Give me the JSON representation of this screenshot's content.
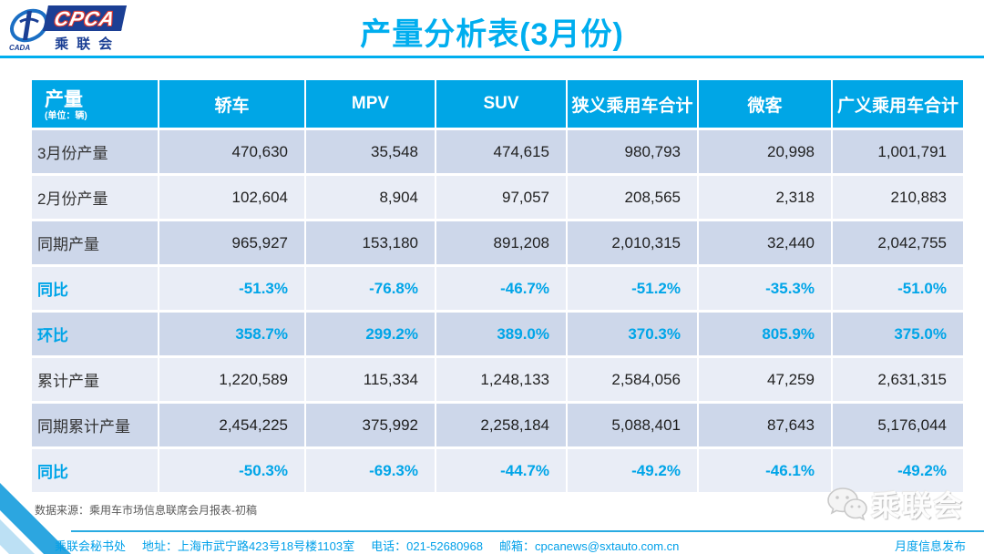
{
  "logo": {
    "acronym": "CPCA",
    "cn_name": "乘联会",
    "emblem_text": "CADA"
  },
  "chart_data": {
    "type": "table",
    "title": "产量分析表(3月份)",
    "corner_label": "产量",
    "unit_note": "(单位：辆)",
    "columns": [
      "轿车",
      "MPV",
      "SUV",
      "狭义乘用车合计",
      "微客",
      "广义乘用车合计"
    ],
    "rows": [
      {
        "label": "3月份产量",
        "type": "number",
        "values": [
          "470,630",
          "35,548",
          "474,615",
          "980,793",
          "20,998",
          "1,001,791"
        ]
      },
      {
        "label": "2月份产量",
        "type": "number",
        "values": [
          "102,604",
          "8,904",
          "97,057",
          "208,565",
          "2,318",
          "210,883"
        ]
      },
      {
        "label": "同期产量",
        "type": "number",
        "values": [
          "965,927",
          "153,180",
          "891,208",
          "2,010,315",
          "32,440",
          "2,042,755"
        ]
      },
      {
        "label": "同比",
        "type": "percent",
        "values": [
          "-51.3%",
          "-76.8%",
          "-46.7%",
          "-51.2%",
          "-35.3%",
          "-51.0%"
        ]
      },
      {
        "label": "环比",
        "type": "percent",
        "values": [
          "358.7%",
          "299.2%",
          "389.0%",
          "370.3%",
          "805.9%",
          "375.0%"
        ]
      },
      {
        "label": "累计产量",
        "type": "number",
        "values": [
          "1,220,589",
          "115,334",
          "1,248,133",
          "2,584,056",
          "47,259",
          "2,631,315"
        ]
      },
      {
        "label": "同期累计产量",
        "type": "number",
        "values": [
          "2,454,225",
          "375,992",
          "2,258,184",
          "5,088,401",
          "87,643",
          "5,176,044"
        ]
      },
      {
        "label": "同比",
        "type": "percent",
        "values": [
          "-50.3%",
          "-69.3%",
          "-44.7%",
          "-49.2%",
          "-46.1%",
          "-49.2%"
        ]
      }
    ]
  },
  "footer": {
    "source": "数据来源：乘用车市场信息联席会月报表-初稿",
    "org": "乘联会秘书处",
    "address": "地址：上海市武宁路423号18号楼1103室",
    "phone": "电话：021-52680968",
    "email": "邮箱：cpcanews@sxtauto.com.cn",
    "right_label": "月度信息发布"
  },
  "watermark": {
    "label": "乘联会"
  },
  "colors": {
    "accent": "#00aeef",
    "header_bg": "#00a6e6",
    "row_dark": "#cdd7ea",
    "row_light": "#e9edf6",
    "percent_blue": "#00a5e8",
    "logo_navy": "#1b3f94"
  }
}
